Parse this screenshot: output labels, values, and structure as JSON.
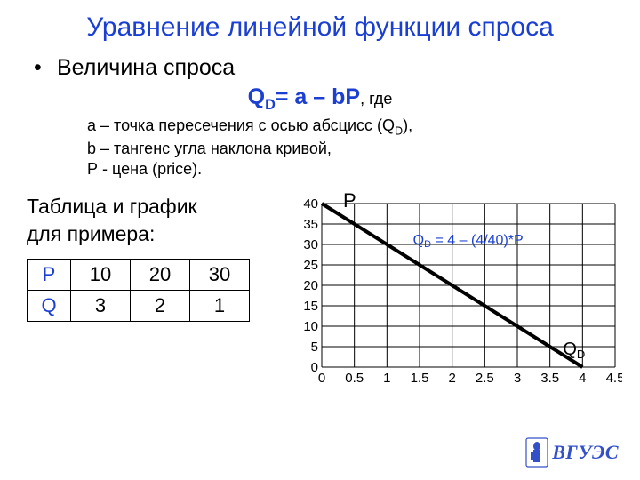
{
  "title": "Уравнение линейной функции спроса",
  "bullet": {
    "dot": "•",
    "text": "Величина спроса"
  },
  "formula": {
    "qd_prefix": "Q",
    "qd_sub": "D",
    "eq": "= a – bP",
    "where": ", где"
  },
  "defs": {
    "a": "a – точка пересечения с осью абсцисс (Q",
    "a_sub": "D",
    "a_tail": "),",
    "b": "b – тангенс угла наклона кривой,",
    "p": "Р -  цена (price)."
  },
  "table": {
    "caption_l1": "Таблица и график",
    "caption_l2": "для примера:",
    "row_p": {
      "hdr": "Р",
      "c1": "10",
      "c2": "20",
      "c3": "30"
    },
    "row_q": {
      "hdr": "Q",
      "c1": "3",
      "c2": "2",
      "c3": "1"
    }
  },
  "chart": {
    "type": "line",
    "p_label": "P",
    "qd_label_prefix": "Q",
    "qd_label_sub": "D",
    "eq_prefix": "Q",
    "eq_sub": "D",
    "eq_rest": "  =  4 – (4/40)*P",
    "x_ticks": [
      "0",
      "0.5",
      "1",
      "1.5",
      "2",
      "2.5",
      "3",
      "3.5",
      "4",
      "4.5"
    ],
    "y_ticks": [
      "0",
      "5",
      "10",
      "15",
      "20",
      "25",
      "30",
      "35",
      "40"
    ],
    "xlim": [
      0,
      4.5
    ],
    "ylim": [
      0,
      40
    ],
    "line": {
      "x1": 0,
      "y1": 40,
      "x2": 4,
      "y2": 0
    },
    "colors": {
      "axis": "#000000",
      "grid": "#000000",
      "line": "#000000",
      "eq_text": "#1a3fd1",
      "bg": "#ffffff"
    },
    "stroke_width": 4,
    "tick_fontsize": 15
  },
  "logo": {
    "text": "ВГУЭС",
    "color": "#3350c8"
  }
}
